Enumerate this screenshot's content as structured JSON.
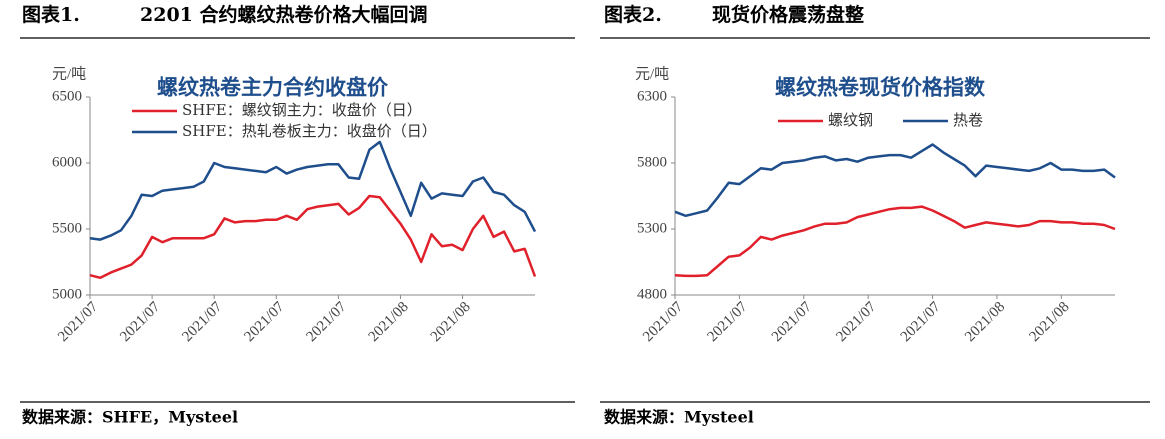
{
  "captions": [
    {
      "label": "图表1.",
      "text": "2201 合约螺纹热卷价格大幅回调"
    },
    {
      "label": "图表2.",
      "text": "现货价格震荡盘整"
    }
  ],
  "sources": [
    "数据来源：SHFE，Mysteel",
    "数据来源：Mysteel"
  ],
  "chart_data": [
    {
      "type": "line",
      "title": "螺纹热卷主力合约收盘价",
      "y_unit": "元/吨",
      "categories": [
        "2021/07",
        null,
        null,
        null,
        null,
        null,
        "2021/07",
        null,
        null,
        null,
        null,
        null,
        "2021/07",
        null,
        null,
        null,
        null,
        null,
        "2021/07",
        null,
        null,
        null,
        null,
        null,
        "2021/07",
        null,
        null,
        null,
        null,
        null,
        "2021/08",
        null,
        null,
        null,
        null,
        null,
        "2021/08",
        null,
        null,
        null,
        null,
        null,
        null,
        null
      ],
      "series": [
        {
          "name": "SHFE：螺纹钢主力：收盘价（日）",
          "color": "#e0202a",
          "values": [
            5150,
            5130,
            5170,
            5200,
            5230,
            5300,
            5440,
            5400,
            5430,
            5430,
            5430,
            5430,
            5460,
            5580,
            5550,
            5560,
            5560,
            5570,
            5570,
            5600,
            5570,
            5650,
            5670,
            5680,
            5690,
            5610,
            5660,
            5750,
            5740,
            5640,
            5540,
            5420,
            5250,
            5460,
            5370,
            5380,
            5340,
            5500,
            5600,
            5440,
            5480,
            5330,
            5350,
            5140
          ]
        },
        {
          "name": "SHFE：热轧卷板主力：收盘价（日）",
          "color": "#1f4e8c",
          "values": [
            5430,
            5420,
            5450,
            5490,
            5600,
            5760,
            5750,
            5790,
            5800,
            5810,
            5820,
            5860,
            6000,
            5970,
            5960,
            5950,
            5940,
            5930,
            5970,
            5920,
            5950,
            5970,
            5980,
            5990,
            5990,
            5890,
            5880,
            6100,
            6160,
            5960,
            5780,
            5600,
            5850,
            5730,
            5770,
            5760,
            5750,
            5860,
            5890,
            5780,
            5760,
            5680,
            5630,
            5480
          ]
        }
      ],
      "ylim": [
        5000,
        6500
      ],
      "yticks": [
        5000,
        5500,
        6000,
        6500
      ],
      "legend": "top-left"
    },
    {
      "type": "line",
      "title": "螺纹热卷现货价格指数",
      "y_unit": "元/吨",
      "categories": [
        "2021/07",
        null,
        null,
        null,
        null,
        null,
        "2021/07",
        null,
        null,
        null,
        null,
        null,
        "2021/07",
        null,
        null,
        null,
        null,
        null,
        "2021/07",
        null,
        null,
        null,
        null,
        null,
        "2021/07",
        null,
        null,
        null,
        null,
        null,
        "2021/08",
        null,
        null,
        null,
        null,
        null,
        "2021/08",
        null,
        null,
        null,
        null,
        null
      ],
      "series": [
        {
          "name": "螺纹钢",
          "color": "#e0202a",
          "values": [
            4950,
            4945,
            4945,
            4950,
            5020,
            5090,
            5100,
            5160,
            5240,
            5220,
            5250,
            5270,
            5290,
            5320,
            5340,
            5340,
            5350,
            5390,
            5410,
            5430,
            5450,
            5460,
            5460,
            5470,
            5440,
            5400,
            5360,
            5310,
            5330,
            5350,
            5340,
            5330,
            5320,
            5330,
            5360,
            5360,
            5350,
            5350,
            5340,
            5340,
            5330,
            5300
          ]
        },
        {
          "name": "热卷",
          "color": "#1f4e8c",
          "values": [
            5430,
            5400,
            5420,
            5440,
            5540,
            5650,
            5640,
            5700,
            5760,
            5750,
            5800,
            5810,
            5820,
            5840,
            5850,
            5820,
            5830,
            5810,
            5840,
            5850,
            5860,
            5860,
            5840,
            5890,
            5940,
            5880,
            5830,
            5780,
            5700,
            5780,
            5770,
            5760,
            5750,
            5740,
            5760,
            5800,
            5750,
            5750,
            5740,
            5740,
            5750,
            5690
          ]
        }
      ],
      "ylim": [
        4800,
        6300
      ],
      "yticks": [
        4800,
        5300,
        5800,
        6300
      ],
      "legend": "top"
    }
  ]
}
